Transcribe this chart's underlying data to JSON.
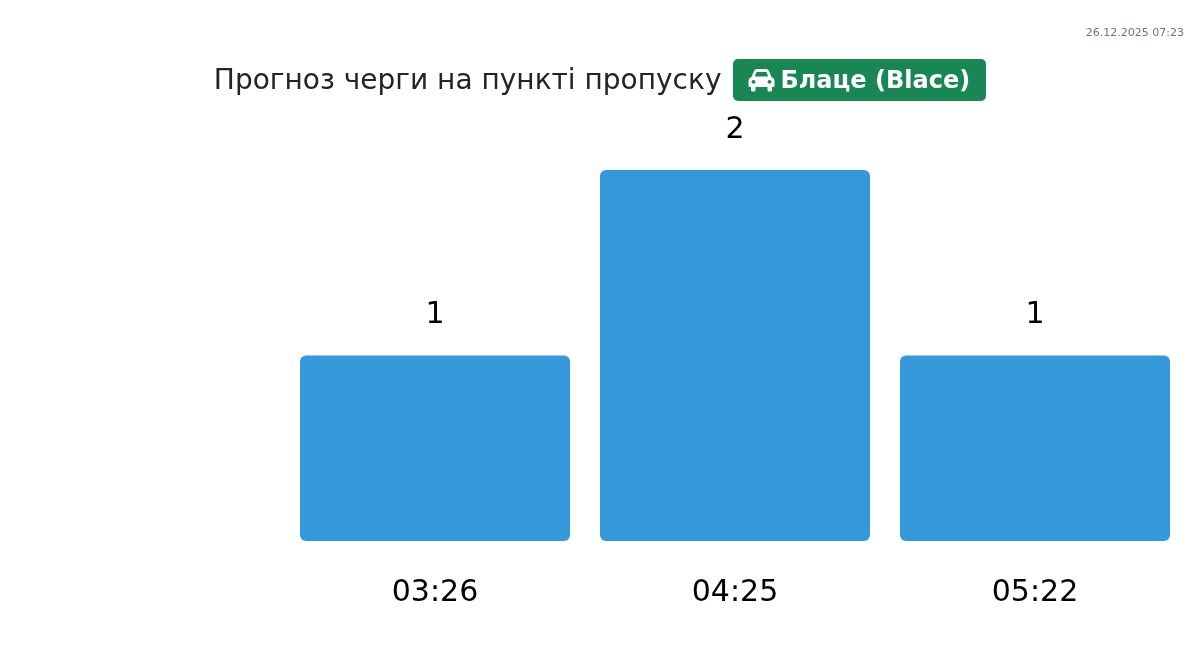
{
  "chart_data": {
    "type": "bar",
    "title": "Прогноз черги на пункті пропуску",
    "subtitle": "Блаце (Blace)",
    "categories": [
      "03:26",
      "04:25",
      "05:22"
    ],
    "values": [
      1,
      2,
      1
    ],
    "color": "#3498db",
    "data_labels": true,
    "annotations": [
      "26.12.2025 07:23"
    ]
  }
}
